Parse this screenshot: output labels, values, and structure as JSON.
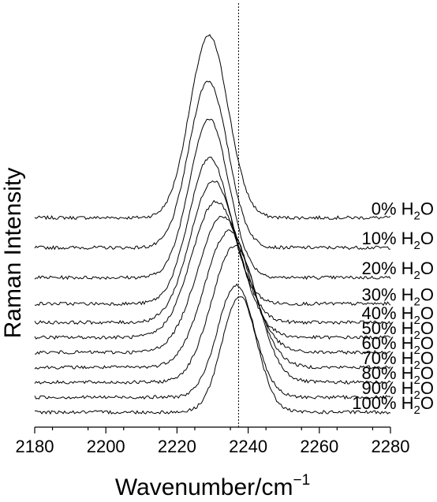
{
  "chart_data": {
    "type": "line",
    "title": "",
    "xlabel": {
      "text": "Wavenumber/cm",
      "sup": "−1"
    },
    "ylabel": "Raman Intensity",
    "xlim": [
      2180,
      2280
    ],
    "x_ticks": [
      2180,
      2200,
      2220,
      2240,
      2260,
      2280
    ],
    "x_tick_labels": [
      "2180",
      "2200",
      "2220",
      "2240",
      "2260",
      "2280"
    ],
    "y_axis_visible": false,
    "stacked_offsets": true,
    "grid": false,
    "legend": "none",
    "reference_line": {
      "x": 2237.3,
      "style": "dotted"
    },
    "series_label_suffix": {
      "text": "H",
      "sub": "2",
      "tail": "O"
    },
    "series": [
      {
        "name": "0%",
        "baseline": 2.6,
        "peak_center": 2229.0,
        "peak_height": 2.43,
        "peak_width": 5.4
      },
      {
        "name": "10%",
        "baseline": 2.2,
        "peak_center": 2228.8,
        "peak_height": 2.23,
        "peak_width": 5.4
      },
      {
        "name": "20%",
        "baseline": 1.8,
        "peak_center": 2229.0,
        "peak_height": 2.12,
        "peak_width": 5.5
      },
      {
        "name": "30%",
        "baseline": 1.45,
        "peak_center": 2229.2,
        "peak_height": 1.95,
        "peak_width": 5.8
      },
      {
        "name": "40%",
        "baseline": 1.2,
        "peak_center": 2230.2,
        "peak_height": 1.9,
        "peak_width": 6.4
      },
      {
        "name": "50%",
        "baseline": 1.0,
        "peak_center": 2231.0,
        "peak_height": 1.82,
        "peak_width": 6.8
      },
      {
        "name": "60%",
        "baseline": 0.8,
        "peak_center": 2232.8,
        "peak_height": 1.82,
        "peak_width": 7.0
      },
      {
        "name": "70%",
        "baseline": 0.6,
        "peak_center": 2234.6,
        "peak_height": 1.82,
        "peak_width": 6.8
      },
      {
        "name": "80%",
        "baseline": 0.4,
        "peak_center": 2236.2,
        "peak_height": 1.82,
        "peak_width": 6.4
      },
      {
        "name": "90%",
        "baseline": 0.2,
        "peak_center": 2236.6,
        "peak_height": 1.5,
        "peak_width": 5.2
      },
      {
        "name": "100%",
        "baseline": 0.0,
        "peak_center": 2237.6,
        "peak_height": 1.55,
        "peak_width": 4.9
      }
    ],
    "y_display_range": [
      -0.2,
      5.3
    ]
  }
}
